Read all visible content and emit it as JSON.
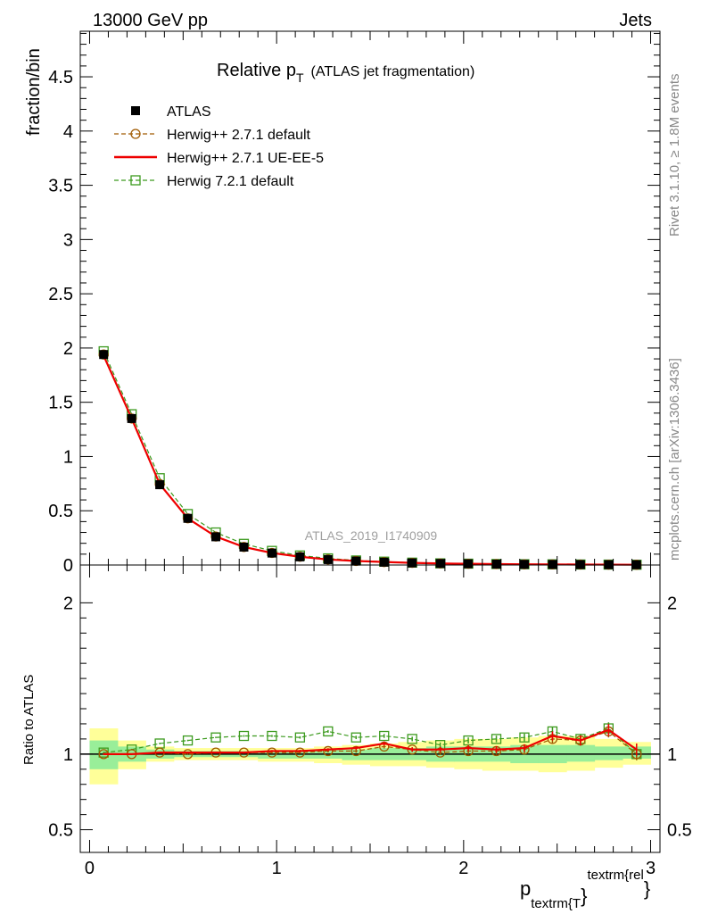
{
  "header": {
    "energy_label": "13000 GeV pp",
    "process_label": "Jets",
    "title_main": "Relative p",
    "title_sub": "T",
    "title_paren": "(ATLAS jet fragmentation)",
    "watermark": "ATLAS_2019_I1740909",
    "side_rivet": "Rivet 3.1.10, ≥ 1.8M events",
    "side_mcplots": "mcplots.cern.ch [arXiv:1306.3436]"
  },
  "axes": {
    "ylabel_main": "fraction/bin",
    "ylabel_ratio": "Ratio to ATLAS",
    "xlabel_main": "p",
    "xlabel_sub": "textrm{T",
    "xlabel_brace": "}",
    "xlabel_sup": "textrm{rel",
    "xlabel_sup_brace": "}"
  },
  "legend": [
    {
      "label": "ATLAS",
      "color": "#000000",
      "marker": "filled-square",
      "line": "none"
    },
    {
      "label": "Herwig++ 2.7.1 default",
      "color": "#a05a00",
      "marker": "open-circle",
      "line": "dashed"
    },
    {
      "label": "Herwig++ 2.7.1 UE-EE-5",
      "color": "#ee0000",
      "marker": "none",
      "line": "solid"
    },
    {
      "label": "Herwig 7.2.1 default",
      "color": "#3c9a1e",
      "marker": "open-square",
      "line": "dashed"
    }
  ],
  "chart_data": [
    {
      "type": "line",
      "panel": "main",
      "xlim": [
        -0.05,
        3.05
      ],
      "ylim": [
        0,
        4.92
      ],
      "yticks": [
        0,
        0.5,
        1,
        1.5,
        2,
        2.5,
        3,
        3.5,
        4,
        4.5
      ],
      "ytick_labels": [
        "0",
        "0.5",
        "1",
        "1.5",
        "2",
        "2.5",
        "3",
        "3.5",
        "4",
        "4.5"
      ],
      "x": [
        0.075,
        0.225,
        0.375,
        0.525,
        0.675,
        0.825,
        0.975,
        1.125,
        1.275,
        1.425,
        1.575,
        1.725,
        1.875,
        2.025,
        2.175,
        2.325,
        2.475,
        2.625,
        2.775,
        2.925
      ],
      "series": [
        {
          "name": "ATLAS",
          "values": [
            1.94,
            1.35,
            0.74,
            0.43,
            0.26,
            0.165,
            0.11,
            0.075,
            0.05,
            0.036,
            0.026,
            0.019,
            0.014,
            0.011,
            0.008,
            0.006,
            0.005,
            0.004,
            0.003,
            0.0025
          ]
        },
        {
          "name": "Herwig++ 2.7.1 default",
          "values": [
            1.94,
            1.35,
            0.745,
            0.43,
            0.262,
            0.166,
            0.111,
            0.076,
            0.051,
            0.037,
            0.027,
            0.0195,
            0.0142,
            0.0112,
            0.0081,
            0.0061,
            0.0052,
            0.0041,
            0.0032,
            0.0025
          ]
        },
        {
          "name": "Herwig++ 2.7.1 UE-EE-5",
          "values": [
            1.93,
            1.35,
            0.745,
            0.43,
            0.262,
            0.166,
            0.111,
            0.076,
            0.051,
            0.037,
            0.028,
            0.0195,
            0.0142,
            0.0111,
            0.0082,
            0.0062,
            0.0055,
            0.0042,
            0.0036,
            0.0026
          ]
        },
        {
          "name": "Herwig 7.2.1 default",
          "values": [
            1.97,
            1.39,
            0.8,
            0.47,
            0.3,
            0.195,
            0.13,
            0.088,
            0.061,
            0.042,
            0.031,
            0.022,
            0.0153,
            0.0124,
            0.0093,
            0.007,
            0.0063,
            0.0046,
            0.0038,
            0.0025
          ]
        }
      ]
    },
    {
      "type": "line",
      "panel": "ratio",
      "xlim": [
        -0.05,
        3.05
      ],
      "ylim": [
        0.35,
        2.25
      ],
      "yticks": [
        0.5,
        1,
        2
      ],
      "ytick_labels": [
        "0.5",
        "1",
        "2"
      ],
      "xticks": [
        0,
        1,
        2,
        3
      ],
      "xtick_labels": [
        "0",
        "1",
        "2",
        "3"
      ],
      "x": [
        0.075,
        0.225,
        0.375,
        0.525,
        0.675,
        0.825,
        0.975,
        1.125,
        1.275,
        1.425,
        1.575,
        1.725,
        1.875,
        2.025,
        2.175,
        2.325,
        2.475,
        2.625,
        2.775,
        2.925
      ],
      "band_outer_low": [
        0.8,
        0.9,
        0.95,
        0.96,
        0.96,
        0.96,
        0.95,
        0.95,
        0.94,
        0.93,
        0.92,
        0.92,
        0.91,
        0.9,
        0.89,
        0.89,
        0.88,
        0.89,
        0.91,
        0.93
      ],
      "band_outer_high": [
        1.17,
        1.09,
        1.05,
        1.04,
        1.04,
        1.04,
        1.04,
        1.04,
        1.05,
        1.06,
        1.07,
        1.08,
        1.09,
        1.1,
        1.1,
        1.11,
        1.12,
        1.12,
        1.1,
        1.08
      ],
      "band_inner_low": [
        0.9,
        0.95,
        0.97,
        0.98,
        0.98,
        0.98,
        0.97,
        0.97,
        0.97,
        0.96,
        0.96,
        0.96,
        0.95,
        0.95,
        0.95,
        0.94,
        0.94,
        0.95,
        0.96,
        0.97
      ],
      "band_inner_high": [
        1.09,
        1.05,
        1.03,
        1.02,
        1.02,
        1.02,
        1.02,
        1.02,
        1.03,
        1.03,
        1.04,
        1.04,
        1.05,
        1.05,
        1.05,
        1.06,
        1.06,
        1.06,
        1.05,
        1.05
      ],
      "series": [
        {
          "name": "Herwig++ 2.7.1 default",
          "values": [
            1.0,
            1.0,
            1.01,
            1.0,
            1.01,
            1.01,
            1.01,
            1.01,
            1.02,
            1.02,
            1.05,
            1.03,
            1.01,
            1.02,
            1.02,
            1.03,
            1.1,
            1.09,
            1.15,
            1.0
          ],
          "errors": [
            0.005,
            0.005,
            0.005,
            0.005,
            0.005,
            0.006,
            0.007,
            0.008,
            0.009,
            0.011,
            0.013,
            0.015,
            0.017,
            0.02,
            0.022,
            0.025,
            0.03,
            0.033,
            0.04,
            0.04
          ]
        },
        {
          "name": "Herwig++ 2.7.1 UE-EE-5",
          "values": [
            1.0,
            1.0,
            1.01,
            1.01,
            1.01,
            1.01,
            1.02,
            1.02,
            1.03,
            1.04,
            1.07,
            1.03,
            1.03,
            1.04,
            1.03,
            1.04,
            1.12,
            1.09,
            1.16,
            1.03
          ],
          "errors": [
            0.005,
            0.005,
            0.005,
            0.005,
            0.005,
            0.006,
            0.007,
            0.008,
            0.009,
            0.011,
            0.013,
            0.015,
            0.017,
            0.02,
            0.022,
            0.025,
            0.03,
            0.033,
            0.04,
            0.04
          ]
        },
        {
          "name": "Herwig 7.2.1 default",
          "values": [
            1.01,
            1.03,
            1.07,
            1.09,
            1.11,
            1.12,
            1.12,
            1.11,
            1.15,
            1.11,
            1.12,
            1.1,
            1.06,
            1.09,
            1.1,
            1.11,
            1.15,
            1.1,
            1.17,
            1.0
          ],
          "errors": [
            0.005,
            0.005,
            0.005,
            0.005,
            0.005,
            0.006,
            0.007,
            0.008,
            0.009,
            0.011,
            0.013,
            0.015,
            0.017,
            0.02,
            0.022,
            0.025,
            0.03,
            0.033,
            0.04,
            0.04
          ]
        }
      ]
    }
  ]
}
